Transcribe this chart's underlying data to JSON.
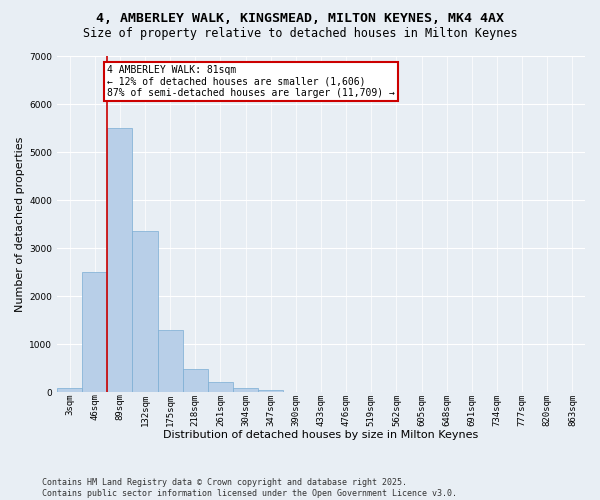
{
  "title_line1": "4, AMBERLEY WALK, KINGSMEAD, MILTON KEYNES, MK4 4AX",
  "title_line2": "Size of property relative to detached houses in Milton Keynes",
  "xlabel": "Distribution of detached houses by size in Milton Keynes",
  "ylabel": "Number of detached properties",
  "categories": [
    "3sqm",
    "46sqm",
    "89sqm",
    "132sqm",
    "175sqm",
    "218sqm",
    "261sqm",
    "304sqm",
    "347sqm",
    "390sqm",
    "433sqm",
    "476sqm",
    "519sqm",
    "562sqm",
    "605sqm",
    "648sqm",
    "691sqm",
    "734sqm",
    "777sqm",
    "820sqm",
    "863sqm"
  ],
  "values": [
    90,
    2500,
    5500,
    3350,
    1300,
    480,
    210,
    90,
    40,
    10,
    3,
    1,
    0,
    0,
    0,
    0,
    0,
    0,
    0,
    0,
    0
  ],
  "bar_color": "#b8cfe8",
  "bar_edge_color": "#7aadd4",
  "vline_color": "#cc0000",
  "vline_xindex": 1.5,
  "annotation_text": "4 AMBERLEY WALK: 81sqm\n← 12% of detached houses are smaller (1,606)\n87% of semi-detached houses are larger (11,709) →",
  "annotation_box_color": "#cc0000",
  "annotation_bg": "#ffffff",
  "ylim": [
    0,
    7000
  ],
  "yticks": [
    0,
    1000,
    2000,
    3000,
    4000,
    5000,
    6000,
    7000
  ],
  "background_color": "#e8eef4",
  "footer_line1": "Contains HM Land Registry data © Crown copyright and database right 2025.",
  "footer_line2": "Contains public sector information licensed under the Open Government Licence v3.0.",
  "title_fontsize": 9.5,
  "subtitle_fontsize": 8.5,
  "tick_fontsize": 6.5,
  "ylabel_fontsize": 8,
  "xlabel_fontsize": 8,
  "annotation_fontsize": 7,
  "footer_fontsize": 6
}
